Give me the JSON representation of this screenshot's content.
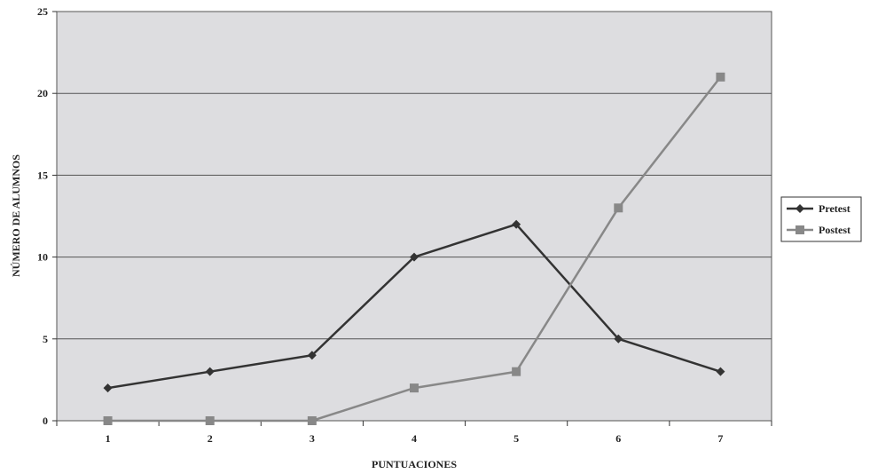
{
  "chart_data": {
    "type": "line",
    "categories": [
      "1",
      "2",
      "3",
      "4",
      "5",
      "6",
      "7"
    ],
    "series": [
      {
        "name": "Pretest",
        "values": [
          2,
          3,
          4,
          10,
          12,
          5,
          3
        ],
        "color": "#333333",
        "marker": "diamond"
      },
      {
        "name": "Postest",
        "values": [
          0,
          0,
          0,
          2,
          3,
          13,
          21
        ],
        "color": "#888888",
        "marker": "square"
      }
    ],
    "xlabel": "PUNTUACIONES",
    "ylabel": "NÚMERO DE ALUMNOS",
    "ylim": [
      0,
      25
    ],
    "yticks": [
      0,
      5,
      10,
      15,
      20,
      25
    ],
    "grid": true,
    "plot_background": "#dddde0",
    "legend_position": "right"
  }
}
